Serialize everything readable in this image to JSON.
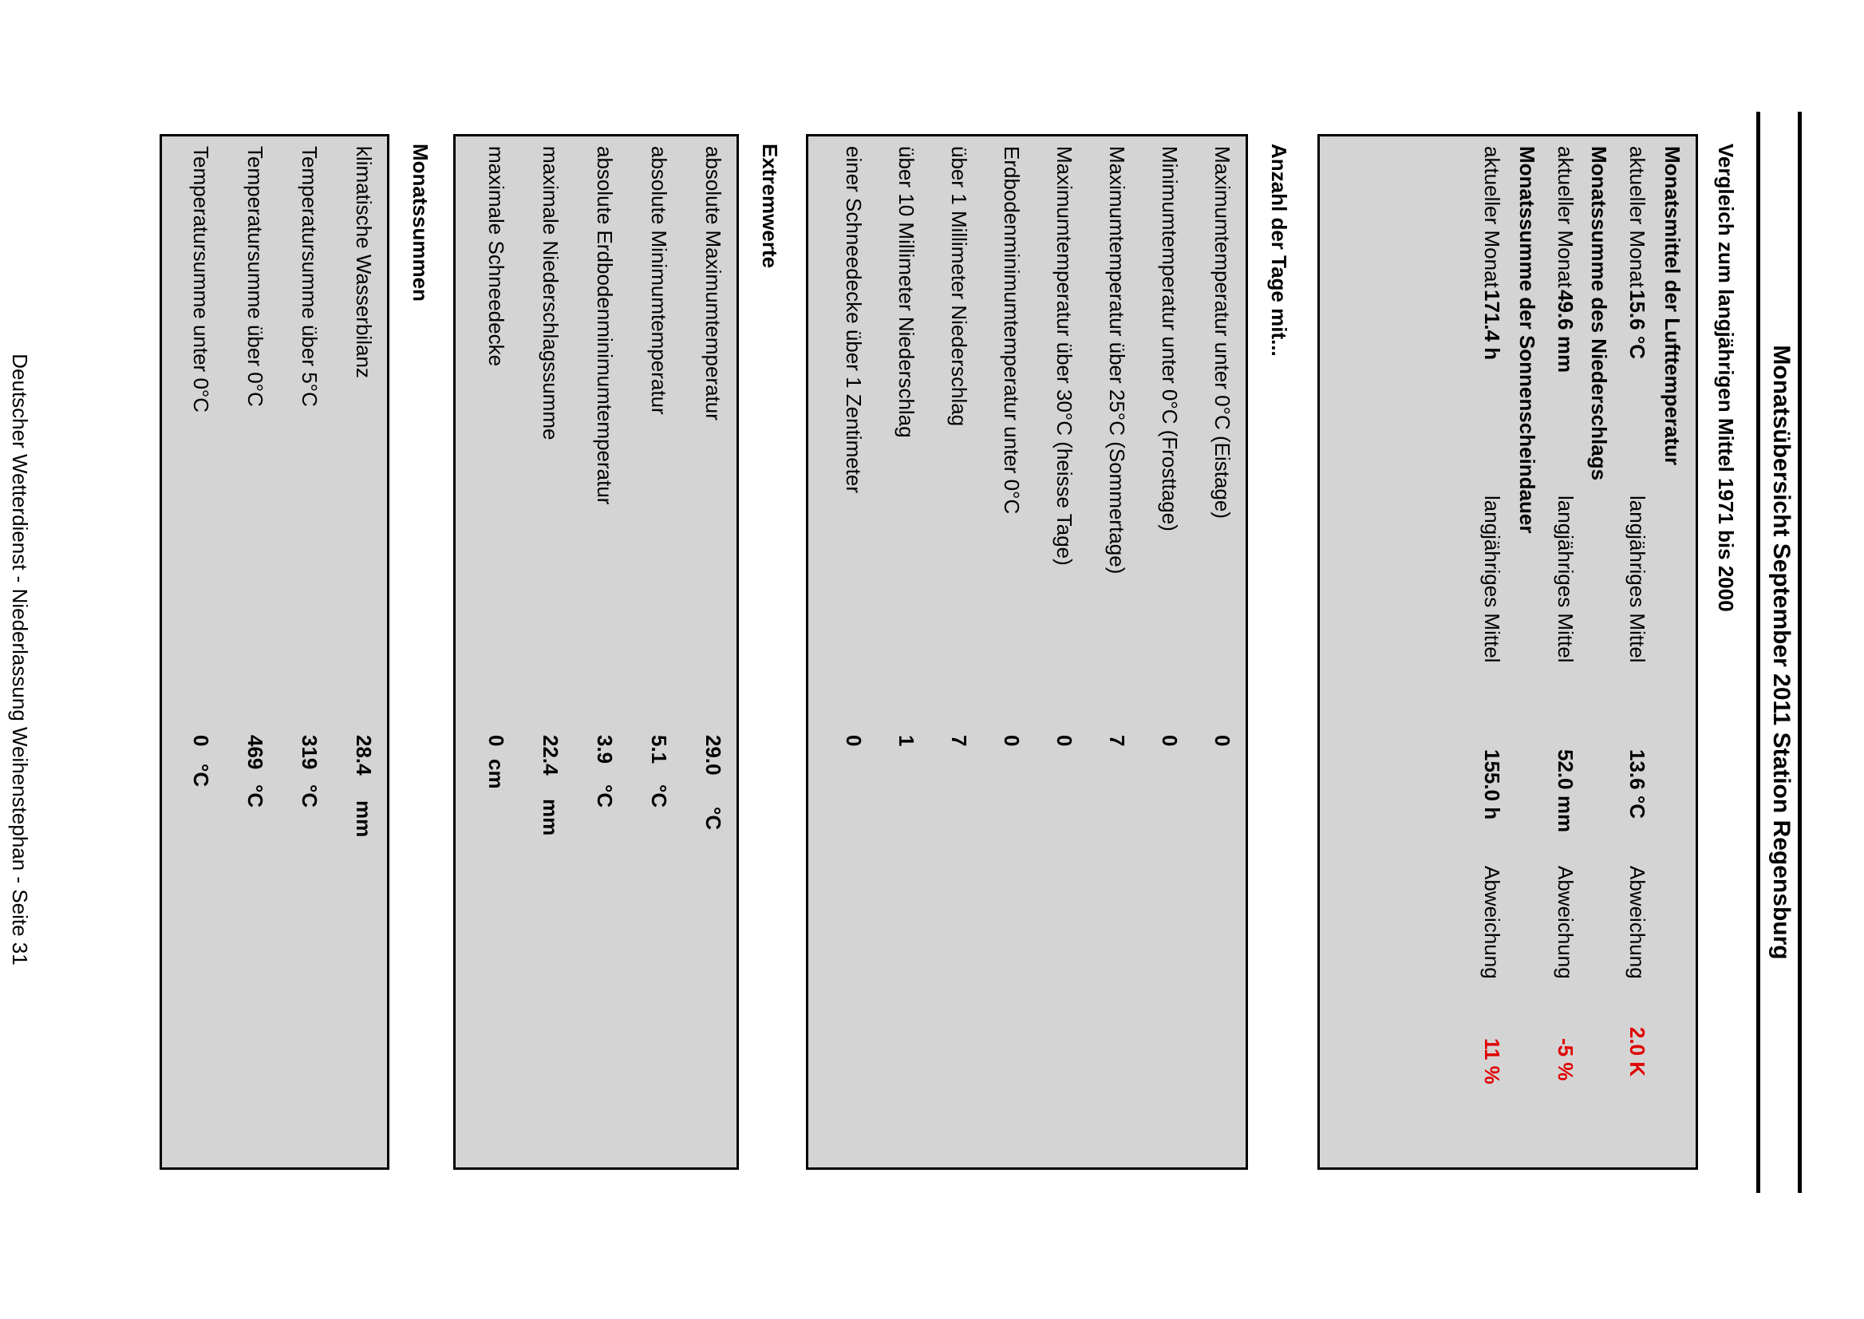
{
  "title": "Monatsübersicht September 2011 Station Regensburg",
  "comparison": {
    "heading": "Vergleich zum langjährigen Mittel 1971 bis 2000",
    "label_current": "aktueller Monat",
    "label_longterm": "langjähriges Mittel",
    "label_deviation": "Abweichung",
    "groups": [
      {
        "heading": "Monatsmittel der Lufttemperatur",
        "current": "15.6 °C",
        "longterm": "13.6 °C",
        "deviation": "2.0  K"
      },
      {
        "heading": "Monatssumme des Niederschlags",
        "current": "49.6 mm",
        "longterm": "52.0 mm",
        "deviation": "-5 %"
      },
      {
        "heading": "Monatssumme der Sonnenscheindauer",
        "current": "171.4 h",
        "longterm": "155.0 h",
        "deviation": "11 %"
      }
    ]
  },
  "days": {
    "heading": "Anzahl der Tage mit...",
    "rows": [
      {
        "label": "Maximumtemperatur unter 0°C (Eistage)",
        "value": "0"
      },
      {
        "label": "Minimumtemperatur unter 0°C (Frosttage)",
        "value": "0"
      },
      {
        "label": "Maximumtemperatur über 25°C (Sommertage)",
        "value": "7"
      },
      {
        "label": "Maximumtemperatur über 30°C (heisse Tage)",
        "value": "0"
      },
      {
        "label": "Erdbodenminimumtemperatur unter 0°C",
        "value": "0"
      },
      {
        "label": "über 1 Millimeter Niederschlag",
        "value": "7"
      },
      {
        "label": "über 10 Millimeter Niederschlag",
        "value": "1"
      },
      {
        "label": "einer Schneedecke über 1 Zentimeter",
        "value": "0"
      }
    ]
  },
  "extremes": {
    "heading": "Extremwerte",
    "rows": [
      {
        "label": "absolute Maximumtemperatur",
        "value": "29.0",
        "unit": "°C"
      },
      {
        "label": "absolute Minimumtemperatur",
        "value": "5.1",
        "unit": "°C"
      },
      {
        "label": "absolute Erdbodenminimumtemperatur",
        "value": "3.9",
        "unit": "°C"
      },
      {
        "label": "maximale Niederschlagssumme",
        "value": "22.4",
        "unit": "mm"
      },
      {
        "label": "maximale Schneedecke",
        "value": "0",
        "unit": "cm"
      }
    ]
  },
  "sums": {
    "heading": "Monatssummen",
    "rows": [
      {
        "label": "klimatische Wasserbilanz",
        "value": "28.4",
        "unit": "mm"
      },
      {
        "label": "Temperatursumme über 5°C",
        "value": "319",
        "unit": "°C"
      },
      {
        "label": "Temperatursumme über 0°C",
        "value": "469",
        "unit": "°C"
      },
      {
        "label": "Temperatursumme unter 0°C",
        "value": "0",
        "unit": "°C"
      }
    ]
  },
  "footer": "Deutscher Wetterdienst - Niederlassung Weihenstephan - Seite 31"
}
